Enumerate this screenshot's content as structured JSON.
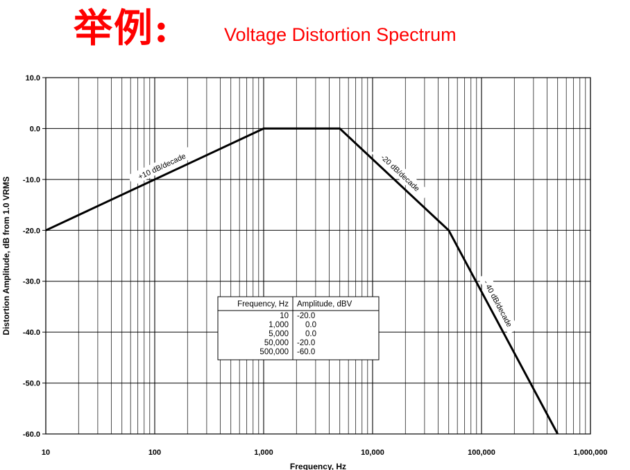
{
  "header": {
    "title_cn": "举例:",
    "title_en": "Voltage Distortion Spectrum"
  },
  "colors": {
    "title": "#ff0000",
    "line": "#000000",
    "grid": "#000000"
  },
  "chart_data": {
    "type": "line",
    "xscale": "log",
    "xlim": [
      10,
      1000000
    ],
    "ylim": [
      -60,
      10
    ],
    "grid": true,
    "xlabel": "Frequency, Hz",
    "ylabel": "Distortion Amplitude, dB from 1.0 VRMS",
    "xtick_labels": [
      "10",
      "100",
      "1,000",
      "10,000",
      "100,000",
      "1,000,000"
    ],
    "ytick_labels": [
      "10.0",
      "0.0",
      "-10.0",
      "-20.0",
      "-30.0",
      "-40.0",
      "-50.0",
      "-60.0"
    ],
    "series": [
      {
        "x": [
          10,
          1000,
          5000,
          50000,
          500000
        ],
        "y": [
          -20.0,
          0.0,
          0.0,
          -20.0,
          -60.0
        ]
      }
    ],
    "annotations": [
      "+10 dB/decade",
      "-20 dB/decade",
      "- 40 dB/decade"
    ],
    "table": {
      "headers": [
        "Frequency, Hz",
        "Amplitude, dBV"
      ],
      "rows": [
        [
          "10",
          "-20.0"
        ],
        [
          "1,000",
          "0.0"
        ],
        [
          "5,000",
          "0.0"
        ],
        [
          "50,000",
          "-20.0"
        ],
        [
          "500,000",
          "-60.0"
        ]
      ]
    }
  }
}
